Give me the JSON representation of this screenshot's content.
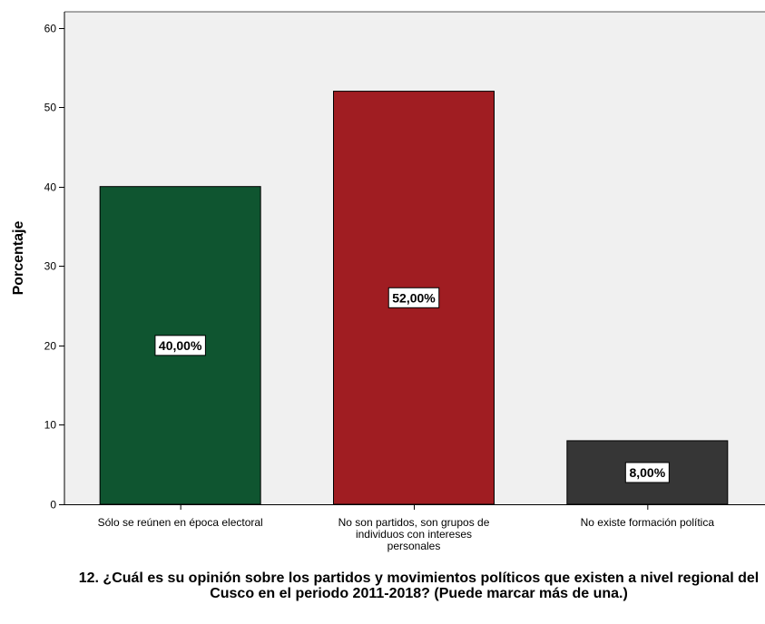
{
  "chart_data": {
    "type": "bar",
    "categories": [
      "Sólo se reúnen en época electoral",
      "No son partidos, son grupos de individuos con intereses personales",
      "No existe formación política"
    ],
    "category_lines": [
      [
        "Sólo se reúnen en época electoral"
      ],
      [
        "No son partidos, son grupos de",
        "individuos con intereses",
        "personales"
      ],
      [
        "No existe formación política"
      ]
    ],
    "values": [
      40,
      52,
      8
    ],
    "data_labels": [
      "40,00%",
      "52,00%",
      "8,00%"
    ],
    "colors": [
      "#0f5530",
      "#a01d22",
      "#363636"
    ],
    "ylabel": "Porcentaje",
    "xlabel": "12. ¿Cuál es su opinión sobre los partidos y movimientos políticos que existen a nivel regional del Cusco en el periodo 2011-2018? (Puede marcar más de una.)",
    "ylim": [
      0,
      62
    ],
    "yticks": [
      0,
      10,
      20,
      30,
      40,
      50,
      60
    ],
    "grid": false,
    "plot_background": "#f0f0f0"
  }
}
